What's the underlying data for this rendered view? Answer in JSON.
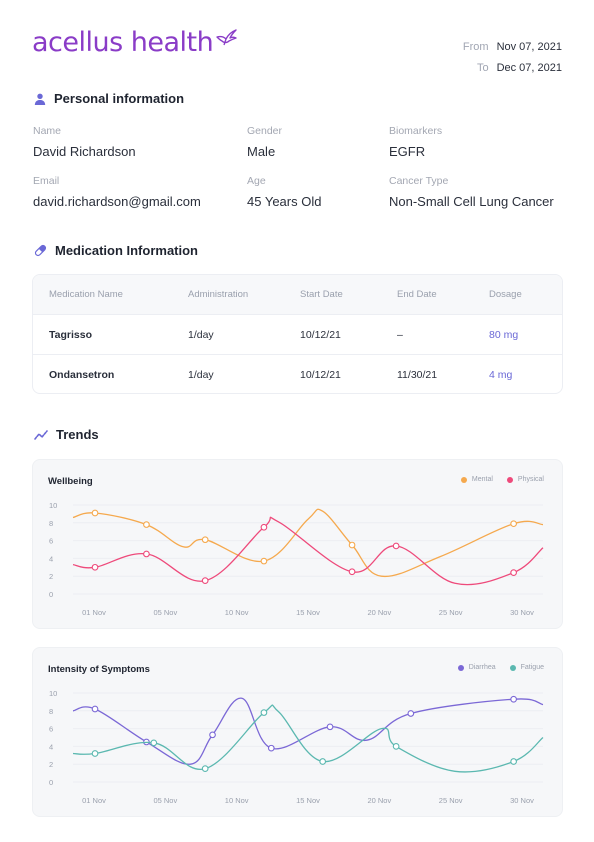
{
  "brand": {
    "name": "acellus health",
    "color": "#8a3cc7"
  },
  "date_range": {
    "from_label": "From",
    "from_value": "Nov 07, 2021",
    "to_label": "To",
    "to_value": "Dec 07, 2021"
  },
  "personal": {
    "heading": "Personal information",
    "fields": [
      {
        "label": "Name",
        "value": "David Richardson"
      },
      {
        "label": "Gender",
        "value": "Male"
      },
      {
        "label": "Biomarkers",
        "value": "EGFR"
      },
      {
        "label": "Email",
        "value": "david.richardson@gmail.com"
      },
      {
        "label": "Age",
        "value": "45 Years Old"
      },
      {
        "label": "Cancer Type",
        "value": "Non-Small Cell Lung Cancer"
      }
    ]
  },
  "medication": {
    "heading": "Medication Information",
    "columns": [
      "Medication Name",
      "Administration",
      "Start Date",
      "End Date",
      "Dosage"
    ],
    "rows": [
      [
        "Tagrisso",
        "1/day",
        "10/12/21",
        "–",
        "80 mg"
      ],
      [
        "Ondansetron",
        "1/day",
        "10/12/21",
        "11/30/21",
        "4 mg"
      ]
    ]
  },
  "trends": {
    "heading": "Trends"
  },
  "chart_data": [
    {
      "type": "line",
      "title": "Wellbeing",
      "x_ticks": [
        "01 Nov",
        "05 Nov",
        "10 Nov",
        "15 Nov",
        "20 Nov",
        "25 Nov",
        "30 Nov"
      ],
      "y_ticks": [
        "0",
        "2",
        "4",
        "6",
        "8",
        "10"
      ],
      "ylim": [
        0,
        10
      ],
      "xlim": [
        0,
        32
      ],
      "series": [
        {
          "name": "Mental",
          "color": "#f5a94e",
          "points": [
            [
              0,
              8.6
            ],
            [
              1.5,
              9.1
            ],
            [
              5,
              7.8
            ],
            [
              7.5,
              5.3
            ],
            [
              9,
              6.1
            ],
            [
              13,
              3.7
            ],
            [
              16,
              8.4
            ],
            [
              17,
              9.3
            ],
            [
              19,
              5.5
            ],
            [
              21,
              2.0
            ],
            [
              25,
              4.2
            ],
            [
              30,
              7.9
            ],
            [
              32,
              7.8
            ]
          ],
          "markers": [
            [
              1.5,
              9.1
            ],
            [
              5,
              7.8
            ],
            [
              9,
              6.1
            ],
            [
              13,
              3.7
            ],
            [
              19,
              5.5
            ],
            [
              30,
              7.9
            ]
          ]
        },
        {
          "name": "Physical",
          "color": "#ee4a7b",
          "points": [
            [
              0,
              3.3
            ],
            [
              1.5,
              3.0
            ],
            [
              5,
              4.5
            ],
            [
              9,
              1.5
            ],
            [
              13,
              7.5
            ],
            [
              14,
              8.1
            ],
            [
              19,
              2.5
            ],
            [
              22,
              5.4
            ],
            [
              26,
              1.2
            ],
            [
              30,
              2.4
            ],
            [
              32,
              5.2
            ]
          ],
          "markers": [
            [
              1.5,
              3.0
            ],
            [
              5,
              4.5
            ],
            [
              9,
              1.5
            ],
            [
              13,
              7.5
            ],
            [
              19,
              2.5
            ],
            [
              22,
              5.4
            ],
            [
              30,
              2.4
            ]
          ]
        }
      ]
    },
    {
      "type": "line",
      "title": "Intensity of Symptoms",
      "x_ticks": [
        "01 Nov",
        "05 Nov",
        "10 Nov",
        "15 Nov",
        "20 Nov",
        "25 Nov",
        "30 Nov"
      ],
      "y_ticks": [
        "0",
        "2",
        "4",
        "6",
        "8",
        "10"
      ],
      "ylim": [
        0,
        10
      ],
      "xlim": [
        0,
        32
      ],
      "series": [
        {
          "name": "Diarrhea",
          "color": "#7b68d6",
          "points": [
            [
              0,
              8.0
            ],
            [
              1.5,
              8.2
            ],
            [
              5,
              4.5
            ],
            [
              8,
              2.0
            ],
            [
              9.5,
              5.3
            ],
            [
              11.5,
              9.4
            ],
            [
              13.5,
              3.8
            ],
            [
              17.5,
              6.2
            ],
            [
              20,
              4.7
            ],
            [
              23,
              7.7
            ],
            [
              30,
              9.3
            ],
            [
              32,
              8.7
            ]
          ],
          "markers": [
            [
              1.5,
              8.2
            ],
            [
              5,
              4.5
            ],
            [
              9.5,
              5.3
            ],
            [
              13.5,
              3.8
            ],
            [
              17.5,
              6.2
            ],
            [
              23,
              7.7
            ],
            [
              30,
              9.3
            ]
          ]
        },
        {
          "name": "Fatigue",
          "color": "#5bb8b0",
          "points": [
            [
              0,
              3.2
            ],
            [
              1.5,
              3.2
            ],
            [
              5.5,
              4.4
            ],
            [
              9,
              1.5
            ],
            [
              13,
              7.8
            ],
            [
              14,
              7.9
            ],
            [
              17,
              2.3
            ],
            [
              21,
              6.0
            ],
            [
              22,
              4.0
            ],
            [
              26,
              1.2
            ],
            [
              30,
              2.3
            ],
            [
              32,
              5.0
            ]
          ],
          "markers": [
            [
              1.5,
              3.2
            ],
            [
              5.5,
              4.4
            ],
            [
              9,
              1.5
            ],
            [
              13,
              7.8
            ],
            [
              17,
              2.3
            ],
            [
              22,
              4.0
            ],
            [
              30,
              2.3
            ]
          ]
        }
      ]
    }
  ]
}
